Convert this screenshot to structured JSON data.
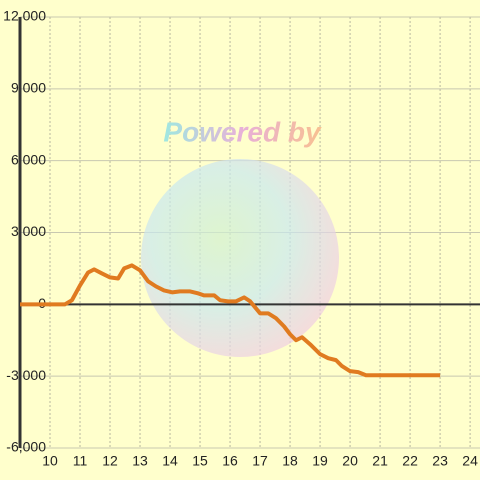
{
  "chart_data": {
    "type": "line",
    "watermark": "Powered by",
    "x": [
      9,
      10.5,
      10.73,
      11,
      11.27,
      11.47,
      11.73,
      12,
      12.27,
      12.47,
      12.73,
      13,
      13.27,
      13.53,
      13.8,
      14.07,
      14.33,
      14.67,
      14.93,
      15.13,
      15.47,
      15.67,
      15.93,
      16.2,
      16.47,
      16.67,
      17,
      17.27,
      17.53,
      17.8,
      18,
      18.2,
      18.4,
      18.67,
      19,
      19.27,
      19.53,
      19.73,
      20,
      20.27,
      20.53,
      23
    ],
    "series": [
      {
        "color": "#e07b20",
        "values": [
          0,
          0,
          170,
          790,
          1330,
          1460,
          1290,
          1125,
          1080,
          1500,
          1625,
          1420,
          960,
          750,
          580,
          500,
          540,
          540,
          460,
          375,
          375,
          170,
          125,
          125,
          290,
          125,
          -375,
          -375,
          -580,
          -920,
          -1250,
          -1500,
          -1375,
          -1670,
          -2080,
          -2250,
          -2330,
          -2580,
          -2790,
          -2830,
          -2960,
          -2960
        ]
      }
    ],
    "xlim": [
      9,
      24.33
    ],
    "xticks": [
      10,
      11,
      12,
      13,
      14,
      15,
      16,
      17,
      18,
      19,
      20,
      21,
      22,
      23,
      24
    ],
    "ylim": [
      -6000,
      12000
    ],
    "yticks": [
      {
        "value": -6000,
        "label": "-6,000"
      },
      {
        "value": -3000,
        "label": "-3,000"
      },
      0,
      {
        "value": 3000,
        "label": "3,000"
      },
      {
        "value": 6000,
        "label": "6,000"
      },
      {
        "value": 9000,
        "label": "9,000"
      },
      {
        "value": 12000,
        "label": "12,000"
      }
    ],
    "grid": true
  }
}
